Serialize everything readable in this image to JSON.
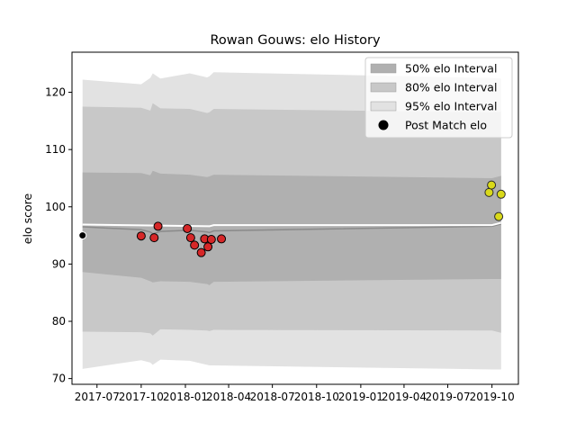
{
  "chart_data": {
    "type": "scatter",
    "title": "Rowan Gouws: elo History",
    "xlabel": "",
    "ylabel": "elo score",
    "xlim": [
      "2017-05-10",
      "2019-11-25"
    ],
    "ylim": [
      69,
      127
    ],
    "x_ticks": [
      "2017-07",
      "2017-10",
      "2018-01",
      "2018-04",
      "2018-07",
      "2018-10",
      "2019-01",
      "2019-04",
      "2019-07",
      "2019-10"
    ],
    "y_ticks": [
      70,
      80,
      90,
      100,
      110,
      120
    ],
    "grid": false,
    "legend_position": "top-right",
    "legend": [
      {
        "label": "50% elo Interval",
        "color": "#b0b0b0"
      },
      {
        "label": "80% elo Interval",
        "color": "#c8c8c8"
      },
      {
        "label": "95% elo Interval",
        "color": "#e2e2e2"
      },
      {
        "label": "Post Match elo",
        "color": "#000000"
      }
    ],
    "interval_dates": [
      "2017-06-01",
      "2017-10-01",
      "2017-10-20",
      "2017-10-25",
      "2017-11-10",
      "2018-01-10",
      "2018-02-15",
      "2018-02-20",
      "2018-03-01",
      "2019-10-01",
      "2019-10-20"
    ],
    "mean": [
      96.5,
      96.0,
      95.6,
      95.3,
      95.7,
      95.9,
      95.6,
      95.5,
      95.8,
      96.6,
      97.0
    ],
    "band_50": {
      "low": [
        88.6,
        87.6,
        87.0,
        86.8,
        87.0,
        86.9,
        86.5,
        86.3,
        86.9,
        87.4,
        87.4
      ],
      "high": [
        106.0,
        105.9,
        105.5,
        106.3,
        105.8,
        105.6,
        105.2,
        105.3,
        105.6,
        105.0,
        105.4
      ]
    },
    "band_80": {
      "low": [
        78.2,
        78.1,
        77.9,
        77.5,
        78.6,
        78.5,
        78.4,
        78.3,
        78.5,
        78.4,
        78.0
      ],
      "high": [
        117.5,
        117.3,
        116.8,
        118.1,
        117.2,
        117.1,
        116.4,
        116.5,
        117.1,
        116.5,
        116.6
      ]
    },
    "band_95": {
      "low": [
        71.7,
        73.2,
        72.8,
        72.4,
        73.3,
        73.1,
        72.4,
        72.3,
        72.3,
        71.6,
        71.6
      ],
      "high": [
        122.2,
        121.4,
        122.5,
        123.3,
        122.4,
        123.3,
        122.6,
        122.8,
        123.5,
        122.5,
        122.4
      ]
    },
    "white_line": [
      {
        "x": "2017-06-01",
        "y": 96.9
      },
      {
        "x": "2018-02-20",
        "y": 96.6
      },
      {
        "x": "2018-03-01",
        "y": 96.8
      },
      {
        "x": "2019-10-01",
        "y": 96.8
      },
      {
        "x": "2019-10-20",
        "y": 97.2
      }
    ],
    "points": [
      {
        "x": "2017-06-01",
        "y": 95.0,
        "group": "black"
      },
      {
        "x": "2017-10-01",
        "y": 94.9,
        "group": "red"
      },
      {
        "x": "2017-10-28",
        "y": 94.6,
        "group": "red"
      },
      {
        "x": "2017-11-05",
        "y": 96.6,
        "group": "red"
      },
      {
        "x": "2018-01-05",
        "y": 96.2,
        "group": "red"
      },
      {
        "x": "2018-01-12",
        "y": 94.6,
        "group": "red"
      },
      {
        "x": "2018-01-20",
        "y": 93.3,
        "group": "red"
      },
      {
        "x": "2018-02-03",
        "y": 92.0,
        "group": "red"
      },
      {
        "x": "2018-02-10",
        "y": 94.4,
        "group": "red"
      },
      {
        "x": "2018-02-17",
        "y": 93.0,
        "group": "red"
      },
      {
        "x": "2018-02-24",
        "y": 94.3,
        "group": "red"
      },
      {
        "x": "2018-03-17",
        "y": 94.4,
        "group": "red"
      },
      {
        "x": "2019-09-25",
        "y": 102.5,
        "group": "yellow"
      },
      {
        "x": "2019-09-30",
        "y": 103.8,
        "group": "yellow"
      },
      {
        "x": "2019-10-15",
        "y": 98.3,
        "group": "yellow"
      },
      {
        "x": "2019-10-20",
        "y": 102.2,
        "group": "yellow"
      }
    ],
    "colors": {
      "band_50": "#b0b0b0",
      "band_80": "#c8c8c8",
      "band_95": "#e2e2e2",
      "mean_line": "#8a8a8a",
      "white_line": "#ffffff",
      "point_black": "#000000",
      "point_red": "#d62728",
      "point_yellow": "#d9d91a"
    }
  }
}
